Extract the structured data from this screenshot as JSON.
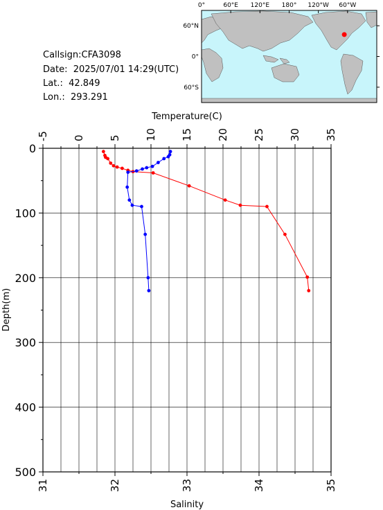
{
  "station": {
    "callsign": "Callsign:CFA3098",
    "date": "Date:  2025/07/01 14:29(UTC)",
    "lat": "Lat.:  42.849",
    "lon": "Lon.:  293.291"
  },
  "map": {
    "lon_labels": [
      "0°",
      "60°E",
      "120°E",
      "180°",
      "120°W",
      "60°W"
    ],
    "lat_labels": [
      "60°N",
      "0°",
      "60°S"
    ],
    "ocean_color": "#c8f5fb",
    "land_color": "#c0c0c0",
    "marker_color": "#ff0000",
    "marker_lat": 42.849,
    "marker_lon": 293.291
  },
  "chart_data": {
    "type": "line",
    "y_axis": {
      "label": "Depth(m)",
      "range": [
        0,
        500
      ],
      "reversed": true,
      "ticks": [
        "0",
        "100",
        "200",
        "300",
        "400",
        "500"
      ]
    },
    "top_axis": {
      "label": "Temperature(C)",
      "range": [
        -5,
        35
      ],
      "ticks": [
        "-5",
        "0",
        "5",
        "10",
        "15",
        "20",
        "25",
        "30",
        "35"
      ]
    },
    "bottom_axis": {
      "label": "Salinity",
      "range": [
        31,
        35
      ],
      "ticks": [
        "31",
        "32",
        "33",
        "34",
        "35"
      ]
    },
    "grid": true,
    "series": [
      {
        "axis": "temperature",
        "color": "#ff0000",
        "points": [
          {
            "x": 3.4,
            "y": 5
          },
          {
            "x": 3.6,
            "y": 11
          },
          {
            "x": 3.7,
            "y": 14
          },
          {
            "x": 4.0,
            "y": 16
          },
          {
            "x": 4.4,
            "y": 23
          },
          {
            "x": 4.8,
            "y": 27
          },
          {
            "x": 5.3,
            "y": 29
          },
          {
            "x": 6.0,
            "y": 31
          },
          {
            "x": 6.8,
            "y": 34
          },
          {
            "x": 7.5,
            "y": 36
          },
          {
            "x": 10.3,
            "y": 38
          },
          {
            "x": 15.3,
            "y": 58
          },
          {
            "x": 20.3,
            "y": 80
          },
          {
            "x": 22.4,
            "y": 88
          },
          {
            "x": 26.1,
            "y": 90
          },
          {
            "x": 28.6,
            "y": 133
          },
          {
            "x": 31.7,
            "y": 199
          },
          {
            "x": 31.9,
            "y": 220
          }
        ]
      },
      {
        "axis": "salinity",
        "color": "#0000ff",
        "points": [
          {
            "x": 32.77,
            "y": 5
          },
          {
            "x": 32.76,
            "y": 10
          },
          {
            "x": 32.74,
            "y": 13
          },
          {
            "x": 32.68,
            "y": 16
          },
          {
            "x": 32.6,
            "y": 22
          },
          {
            "x": 32.52,
            "y": 28
          },
          {
            "x": 32.44,
            "y": 30
          },
          {
            "x": 32.38,
            "y": 32
          },
          {
            "x": 32.3,
            "y": 35
          },
          {
            "x": 32.18,
            "y": 37
          },
          {
            "x": 32.17,
            "y": 60
          },
          {
            "x": 32.2,
            "y": 80
          },
          {
            "x": 32.24,
            "y": 88
          },
          {
            "x": 32.37,
            "y": 90
          },
          {
            "x": 32.42,
            "y": 133
          },
          {
            "x": 32.46,
            "y": 200
          },
          {
            "x": 32.47,
            "y": 220
          }
        ]
      }
    ]
  }
}
